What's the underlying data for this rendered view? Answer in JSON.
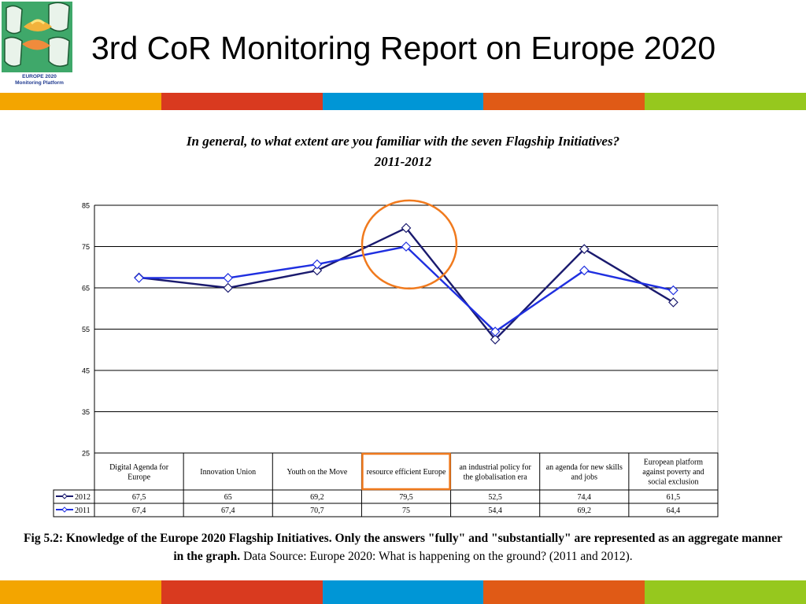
{
  "slide": {
    "title": "3rd CoR Monitoring Report on Europe 2020",
    "logo_lines": [
      "EUROPE 2020",
      "Monitoring Platform"
    ]
  },
  "colors": {
    "stripes": [
      "#f3a500",
      "#d93a1f",
      "#0096d6",
      "#e05a16",
      "#96c81e"
    ],
    "series_2012": "#1a1a6e",
    "series_2011": "#1f2fe0",
    "highlight": "#f07a1e"
  },
  "chart_title_line1": "In general, to what extent are you familiar with the seven Flagship Initiatives?",
  "chart_title_line2": "2011-2012",
  "chart_data": {
    "type": "line",
    "title": "In general, to what extent are you familiar with the seven Flagship Initiatives? 2011-2012",
    "categories": [
      [
        "Digital Agenda for",
        "Europe"
      ],
      [
        "Innovation Union"
      ],
      [
        "Youth on the Move"
      ],
      [
        "resource efficient Europe"
      ],
      [
        "an industrial policy for",
        "the globalisation era"
      ],
      [
        "an agenda for new skills",
        "and jobs"
      ],
      [
        "European platform",
        "against poverty and",
        "social exclusion"
      ]
    ],
    "series": [
      {
        "name": "2012",
        "values": [
          67.5,
          65,
          69.2,
          79.5,
          52.5,
          74.4,
          61.5
        ],
        "labels": [
          "67,5",
          "65",
          "69,2",
          "79,5",
          "52,5",
          "74,4",
          "61,5"
        ]
      },
      {
        "name": "2011",
        "values": [
          67.4,
          67.4,
          70.7,
          75,
          54.4,
          69.2,
          64.4
        ],
        "labels": [
          "67,4",
          "67,4",
          "70,7",
          "75",
          "54,4",
          "69,2",
          "64,4"
        ]
      }
    ],
    "ylim": [
      25,
      85
    ],
    "yticks": [
      25,
      35,
      45,
      55,
      65,
      75,
      85
    ],
    "grid": true,
    "data_table": true,
    "highlighted_category": "resource efficient Europe"
  },
  "caption": {
    "bold": "Fig 5.2: Knowledge of the Europe 2020 Flagship Initiatives. Only the answers \"fully\" and \"substantially\" are represented as an aggregate manner in the graph.",
    "normal": " Data Source: Europe 2020: What is happening on the ground? (2011 and 2012)."
  }
}
